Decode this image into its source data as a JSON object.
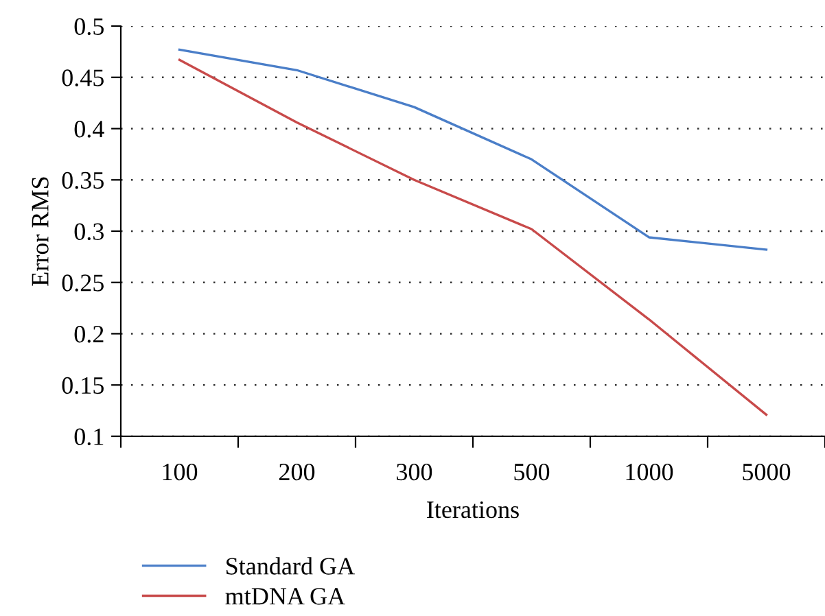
{
  "chart_data": {
    "type": "line",
    "xlabel": "Iterations",
    "ylabel": "Error RMS",
    "categories": [
      "100",
      "200",
      "300",
      "500",
      "1000",
      "5000"
    ],
    "series": [
      {
        "name": "Standard GA",
        "color": "#4a7ec8",
        "values": [
          0.477,
          0.457,
          0.421,
          0.37,
          0.294,
          0.282
        ]
      },
      {
        "name": "mtDNA GA",
        "color": "#c84a4a",
        "values": [
          0.467,
          0.406,
          0.35,
          0.302,
          0.214,
          0.121
        ]
      }
    ],
    "ylim": [
      0.1,
      0.5
    ],
    "yticks": [
      0.1,
      0.15,
      0.2,
      0.25,
      0.3,
      0.35,
      0.4,
      0.45,
      0.5
    ],
    "grid": "y",
    "legend": "bottom left",
    "marker": "none",
    "line_style": "solid"
  }
}
